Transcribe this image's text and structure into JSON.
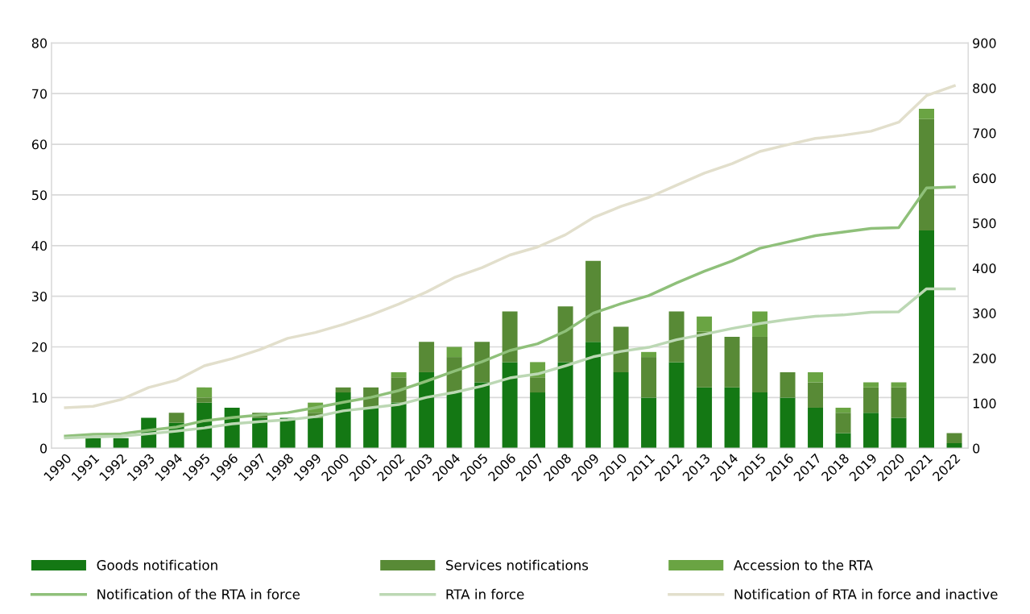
{
  "chart_data": {
    "type": "bar",
    "stacked": true,
    "categories": [
      "1990",
      "1991",
      "1992",
      "1993",
      "1994",
      "1995",
      "1996",
      "1997",
      "1998",
      "1999",
      "2000",
      "2001",
      "2002",
      "2003",
      "2004",
      "2005",
      "2006",
      "2007",
      "2008",
      "2009",
      "2010",
      "2011",
      "2012",
      "2013",
      "2014",
      "2015",
      "2016",
      "2017",
      "2018",
      "2019",
      "2020",
      "2021",
      "2022"
    ],
    "series": [
      {
        "name": "Goods notification",
        "color": "#147814",
        "values": [
          0,
          2,
          2,
          6,
          5,
          9,
          8,
          6,
          6,
          6,
          11,
          8,
          9,
          15,
          11,
          13,
          17,
          11,
          17,
          21,
          15,
          10,
          17,
          12,
          12,
          11,
          10,
          8,
          3,
          7,
          6,
          43,
          1
        ]
      },
      {
        "name": "Services notifications",
        "color": "#588a36",
        "values": [
          0,
          0,
          0,
          0,
          2,
          1,
          0,
          1,
          0,
          1,
          1,
          4,
          5,
          6,
          7,
          8,
          10,
          3,
          11,
          16,
          9,
          8,
          10,
          11,
          10,
          11,
          5,
          5,
          4,
          5,
          6,
          22,
          2
        ]
      },
      {
        "name": "Accession to the RTA",
        "color": "#6aa443",
        "values": [
          0,
          0,
          0,
          0,
          0,
          2,
          0,
          0,
          0,
          2,
          0,
          0,
          1,
          0,
          2,
          0,
          0,
          3,
          0,
          0,
          0,
          1,
          0,
          3,
          0,
          5,
          0,
          2,
          1,
          1,
          1,
          2,
          0
        ]
      },
      {
        "name": "Notification of the RTA in force",
        "type": "line",
        "axis": "y2",
        "color": "#8fc07a",
        "values": [
          27,
          31,
          32,
          40,
          47,
          61,
          68,
          74,
          79,
          90,
          102,
          113,
          128,
          149,
          171,
          192,
          217,
          232,
          260,
          300,
          321,
          339,
          367,
          393,
          416,
          444,
          458,
          472,
          480,
          488,
          490,
          578,
          580
        ]
      },
      {
        "name": "RTA in force",
        "type": "line",
        "axis": "y2",
        "color": "#bcd8b4",
        "values": [
          23,
          25,
          27,
          32,
          38,
          45,
          54,
          59,
          63,
          70,
          83,
          90,
          97,
          113,
          124,
          138,
          156,
          165,
          183,
          203,
          215,
          224,
          241,
          253,
          266,
          277,
          286,
          293,
          296,
          302,
          303,
          354,
          354
        ]
      },
      {
        "name": "Notification of RTA in force and inactive",
        "type": "line",
        "axis": "y2",
        "color": "#e2dfcc",
        "values": [
          90,
          93,
          108,
          135,
          151,
          183,
          199,
          219,
          244,
          257,
          275,
          296,
          320,
          347,
          379,
          401,
          429,
          447,
          474,
          512,
          537,
          557,
          584,
          611,
          632,
          659,
          674,
          688,
          695,
          704,
          724,
          783,
          805
        ]
      }
    ],
    "ylim": [
      0,
      80
    ],
    "yticks": [
      0,
      10,
      20,
      30,
      40,
      50,
      60,
      70,
      80
    ],
    "y2lim": [
      0,
      900
    ],
    "y2ticks": [
      0,
      100,
      200,
      300,
      400,
      500,
      600,
      700,
      800,
      900
    ],
    "grid": "y",
    "legend": "bottom",
    "marker": "none",
    "line_style": "solid"
  }
}
